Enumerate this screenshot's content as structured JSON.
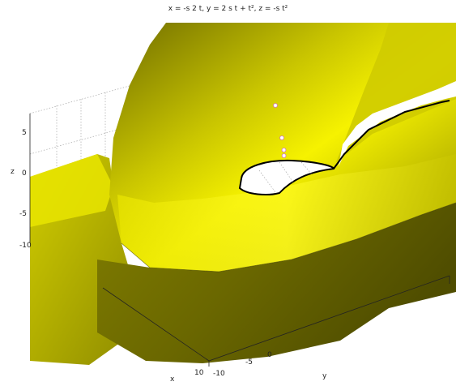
{
  "chart_data": {
    "type": "surface3d",
    "title": "x = -s 2 t, y = 2 s t + t², z = -s t²",
    "xlabel": "x",
    "ylabel": "y",
    "zlabel": "z",
    "z_ticks": [
      "5",
      "0",
      "-5",
      "-10"
    ],
    "x_ticks": [
      "10"
    ],
    "y_ticks": [
      "-10",
      "-5",
      "0"
    ],
    "grid": true,
    "colors": {
      "surface_light": "#f4f000",
      "surface_mid": "#b8b400",
      "surface_dark": "#5f5c00",
      "surface_edge": "#3b3900",
      "grid": "#9a9a9a",
      "box": "#222222",
      "points_fill": "#ffffff",
      "points_edge": "#d070d0"
    },
    "points": [
      {
        "s": 1.0,
        "t": 1.0
      },
      {
        "s": 0.9,
        "t": 0.6
      },
      {
        "s": 0.85,
        "t": 0.45
      },
      {
        "s": 0.8,
        "t": 0.38
      }
    ]
  }
}
